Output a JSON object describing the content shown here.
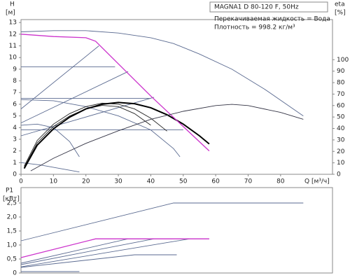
{
  "chart_data": [
    {
      "type": "line",
      "title": "MAGNA1 D 80-120 F, 50Hz",
      "annotations": [
        "Перекачиваемая жидкость = Вода",
        "Плотность = 998.2 кг/м³"
      ],
      "ylabel": "H",
      "ylabel_unit": "[м]",
      "y2label": "eta",
      "y2label_unit": "[%]",
      "xlabel": "Q [м³/ч]",
      "xlim": [
        0,
        96
      ],
      "xticks": [
        0,
        10,
        20,
        30,
        40,
        50,
        60,
        70,
        80
      ],
      "ylim": [
        0,
        13.25
      ],
      "yticks": [
        0,
        1,
        2,
        3,
        4,
        5,
        6,
        7,
        8,
        9,
        10,
        11,
        12,
        13
      ],
      "y2lim": [
        0,
        135
      ],
      "y2ticks": [
        0,
        10,
        20,
        30,
        40,
        50,
        60,
        70,
        80,
        90,
        100
      ],
      "series": [
        {
          "color": "#5a6a90",
          "x": [
            0,
            10,
            20,
            30,
            40,
            47,
            55,
            65,
            75,
            87
          ],
          "values": [
            12.2,
            12.3,
            12.3,
            12.1,
            11.7,
            11.2,
            10.3,
            9.0,
            7.3,
            5.0
          ]
        },
        {
          "color": "#5a6a90",
          "x": [
            0,
            29
          ],
          "values": [
            9.2,
            9.2
          ]
        },
        {
          "color": "#5a6a90",
          "x": [
            0,
            40
          ],
          "values": [
            6.5,
            6.5
          ]
        },
        {
          "color": "#5a6a90",
          "x": [
            0,
            50
          ],
          "values": [
            3.8,
            3.8
          ]
        },
        {
          "color": "#5a6a90",
          "x": [
            0,
            24
          ],
          "values": [
            5.6,
            11.0
          ]
        },
        {
          "color": "#5a6a90",
          "x": [
            0,
            33
          ],
          "values": [
            4.4,
            8.8
          ]
        },
        {
          "color": "#5a6a90",
          "x": [
            0,
            41
          ],
          "values": [
            3.3,
            6.6
          ]
        },
        {
          "color": "#5a6a90",
          "x": [
            0,
            10,
            20,
            30,
            40,
            47,
            49
          ],
          "values": [
            6.4,
            6.3,
            5.8,
            5.0,
            3.8,
            2.2,
            1.5
          ]
        },
        {
          "color": "#5a6a90",
          "x": [
            0,
            5,
            10,
            15,
            18
          ],
          "values": [
            4.2,
            4.3,
            4.0,
            2.8,
            1.5
          ]
        },
        {
          "color": "#5a6a90",
          "x": [
            0,
            6,
            12,
            18
          ],
          "values": [
            1.0,
            0.8,
            0.5,
            0.2
          ]
        },
        {
          "color": "#222222",
          "x": [
            1,
            5,
            10,
            15,
            20,
            25,
            30,
            35,
            40,
            45
          ],
          "values": [
            0.7,
            2.9,
            4.3,
            5.2,
            5.8,
            6.1,
            6.0,
            5.6,
            4.8,
            3.7
          ]
        },
        {
          "color": "#222222",
          "x": [
            1,
            5,
            10,
            15,
            20,
            25,
            30,
            35,
            40
          ],
          "values": [
            0.6,
            2.7,
            4.1,
            5.0,
            5.6,
            5.9,
            5.8,
            5.2,
            4.2
          ]
        },
        {
          "color": "#000000",
          "x": [
            1,
            5,
            10,
            15,
            20,
            25,
            30,
            35,
            40,
            45,
            50,
            55,
            58
          ],
          "values": [
            0.5,
            2.5,
            3.9,
            4.9,
            5.6,
            6.0,
            6.15,
            6.05,
            5.7,
            5.1,
            4.3,
            3.3,
            2.6
          ]
        },
        {
          "color": "#cc33cc",
          "x": [
            0,
            10,
            20,
            23,
            40,
            58
          ],
          "values": [
            12.0,
            11.8,
            11.7,
            11.4,
            6.7,
            2.0
          ]
        },
        {
          "color": "#333344",
          "axis": "y2",
          "x": [
            3,
            10,
            20,
            30,
            40,
            50,
            60,
            65,
            70,
            80,
            87
          ],
          "values": [
            3,
            14,
            27,
            38,
            48,
            55,
            60,
            61,
            60,
            54,
            48
          ]
        }
      ]
    },
    {
      "type": "line",
      "ylabel": "P1",
      "ylabel_unit": "[кВт]",
      "xlim": [
        0,
        96
      ],
      "ylim": [
        0,
        3.05
      ],
      "yticks": [
        0,
        {
          "value": 0.5,
          "label": "0,5"
        },
        {
          "value": 1.0,
          "label": "1,0"
        },
        {
          "value": 1.5,
          "label": "1,5"
        },
        {
          "value": 2.0,
          "label": "2,0"
        },
        {
          "value": 2.5,
          "label": "2,5"
        }
      ],
      "series": [
        {
          "color": "#5a6a90",
          "x": [
            0,
            47,
            87
          ],
          "values": [
            1.15,
            2.5,
            2.5
          ]
        },
        {
          "color": "#5a6a90",
          "x": [
            0,
            33,
            58
          ],
          "values": [
            0.35,
            1.22,
            1.22
          ]
        },
        {
          "color": "#5a6a90",
          "x": [
            0,
            41
          ],
          "values": [
            0.3,
            1.22
          ]
        },
        {
          "color": "#5a6a90",
          "x": [
            0,
            52
          ],
          "values": [
            0.22,
            1.22
          ]
        },
        {
          "color": "#5a6a90",
          "x": [
            0,
            35,
            48
          ],
          "values": [
            0.2,
            0.65,
            0.65
          ]
        },
        {
          "color": "#5a6a90",
          "x": [
            0,
            18
          ],
          "values": [
            0.05,
            0.05
          ]
        },
        {
          "color": "#cc33cc",
          "x": [
            0,
            23,
            58
          ],
          "values": [
            0.55,
            1.22,
            1.22
          ]
        }
      ]
    }
  ]
}
